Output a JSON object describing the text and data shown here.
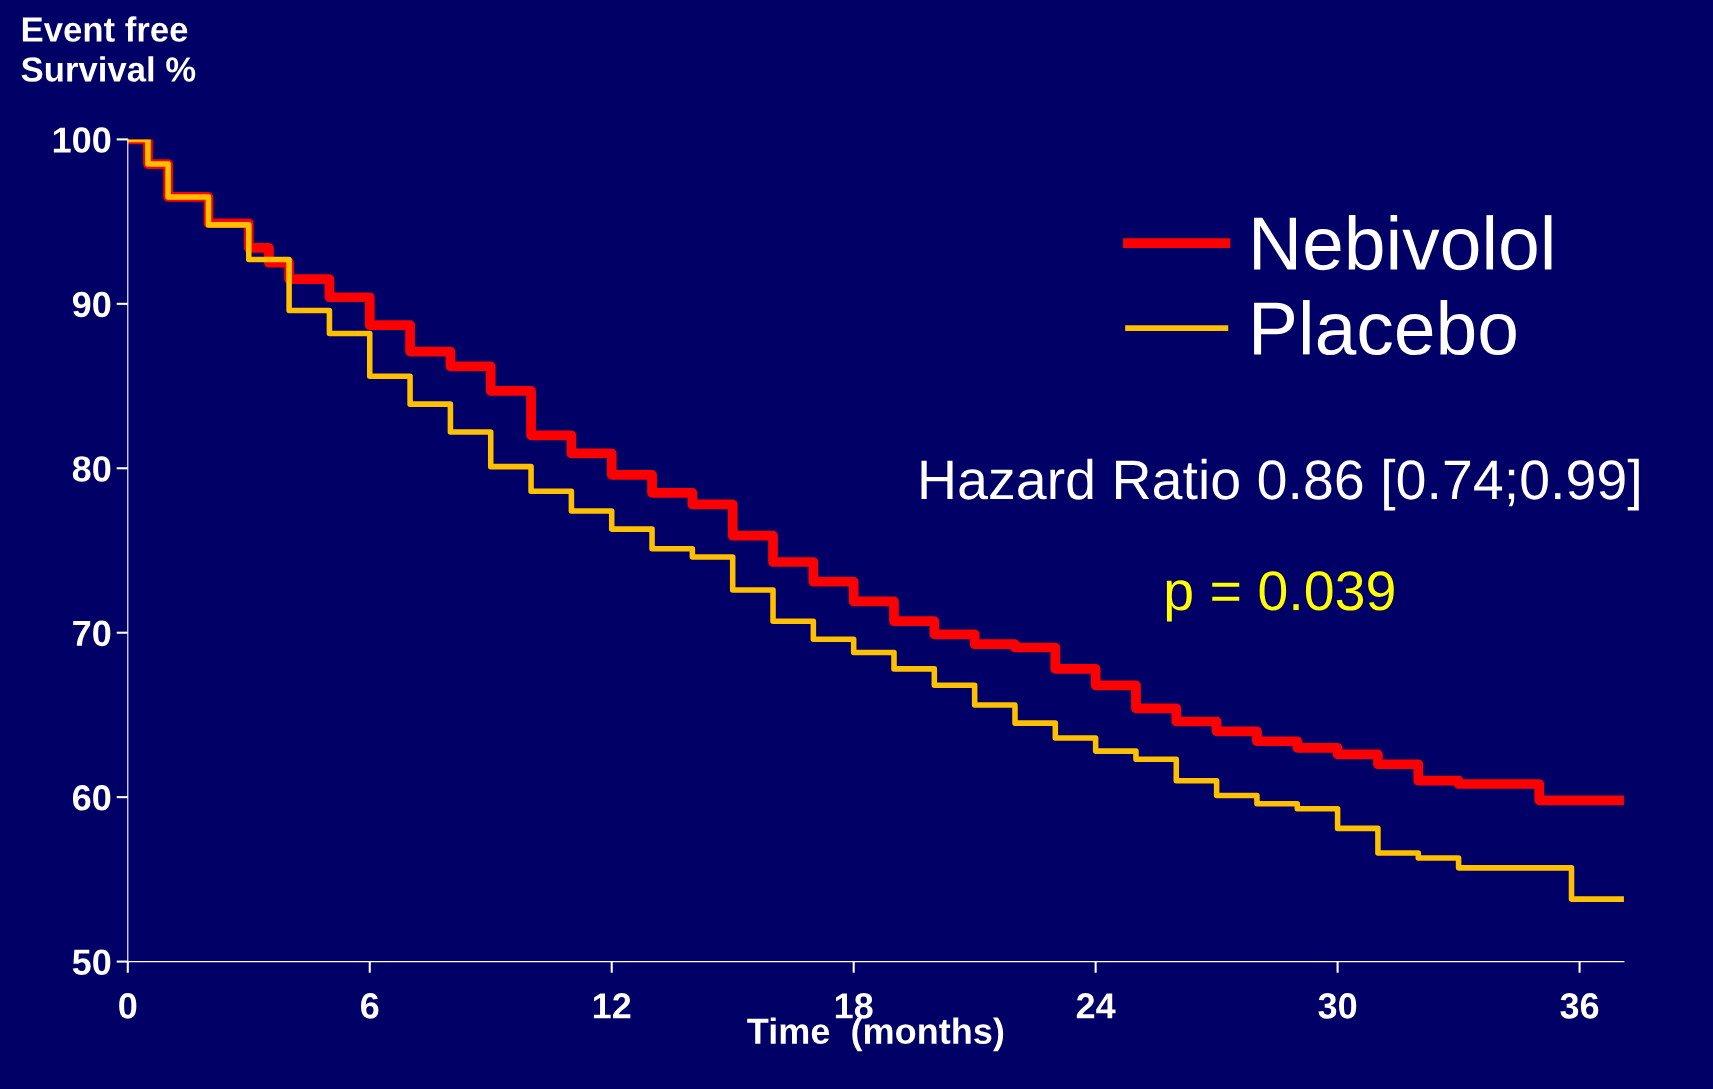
{
  "chart_data": {
    "type": "step",
    "ylabel": "Event free\nSurvival %",
    "xlabel": "Time  (months)",
    "x": [
      0,
      0.5,
      1,
      2,
      3,
      3.5,
      4,
      5,
      6,
      7,
      8,
      9,
      10,
      11,
      12,
      13,
      14,
      15,
      16,
      17,
      18,
      19,
      20,
      21,
      22,
      23,
      24,
      25,
      26,
      27,
      28,
      29,
      30,
      31,
      32,
      33,
      35,
      37.1
    ],
    "series": [
      {
        "name": "Nebivolol",
        "color": "#ff0000",
        "values": [
          100,
          98.5,
          96.5,
          94.9,
          93.4,
          92.5,
          91.5,
          90.4,
          88.7,
          87.1,
          86.2,
          84.7,
          82.0,
          80.9,
          79.6,
          78.5,
          77.8,
          75.9,
          74.3,
          73.1,
          71.9,
          70.7,
          69.9,
          69.3,
          69.1,
          67.8,
          66.8,
          65.4,
          64.6,
          64.0,
          63.4,
          63.0,
          62.6,
          62.0,
          61.0,
          60.8,
          59.8,
          59.8
        ]
      },
      {
        "name": "Placebo",
        "color": "#ffc000",
        "x": [
          0,
          0.5,
          1,
          2,
          3,
          4,
          5,
          6,
          7,
          8,
          9,
          10,
          11,
          12,
          13,
          14,
          15,
          16,
          17,
          18,
          19,
          20,
          21,
          22,
          23,
          24,
          25,
          26,
          27,
          28,
          29,
          30,
          31,
          32,
          33,
          35.8,
          37.1
        ],
        "values": [
          100,
          98.5,
          96.5,
          94.8,
          92.7,
          89.6,
          88.2,
          85.6,
          83.9,
          82.2,
          80.1,
          78.6,
          77.4,
          76.3,
          75.1,
          74.6,
          72.6,
          70.7,
          69.6,
          68.8,
          67.8,
          66.8,
          65.6,
          64.5,
          63.6,
          62.8,
          62.3,
          61.0,
          60.1,
          59.6,
          59.3,
          58.1,
          56.6,
          56.3,
          55.7,
          53.8,
          53.8
        ]
      }
    ],
    "xlim": [
      0,
      37.1
    ],
    "ylim": [
      50,
      100
    ],
    "xticks": [
      0,
      6,
      12,
      18,
      24,
      30,
      36
    ],
    "yticks": [
      50,
      60,
      70,
      80,
      90,
      100
    ],
    "legend": "top right",
    "grid": false,
    "annotations": [
      "Hazard Ratio 0.86 [0.74;0.99]",
      "p = 0.039"
    ]
  }
}
